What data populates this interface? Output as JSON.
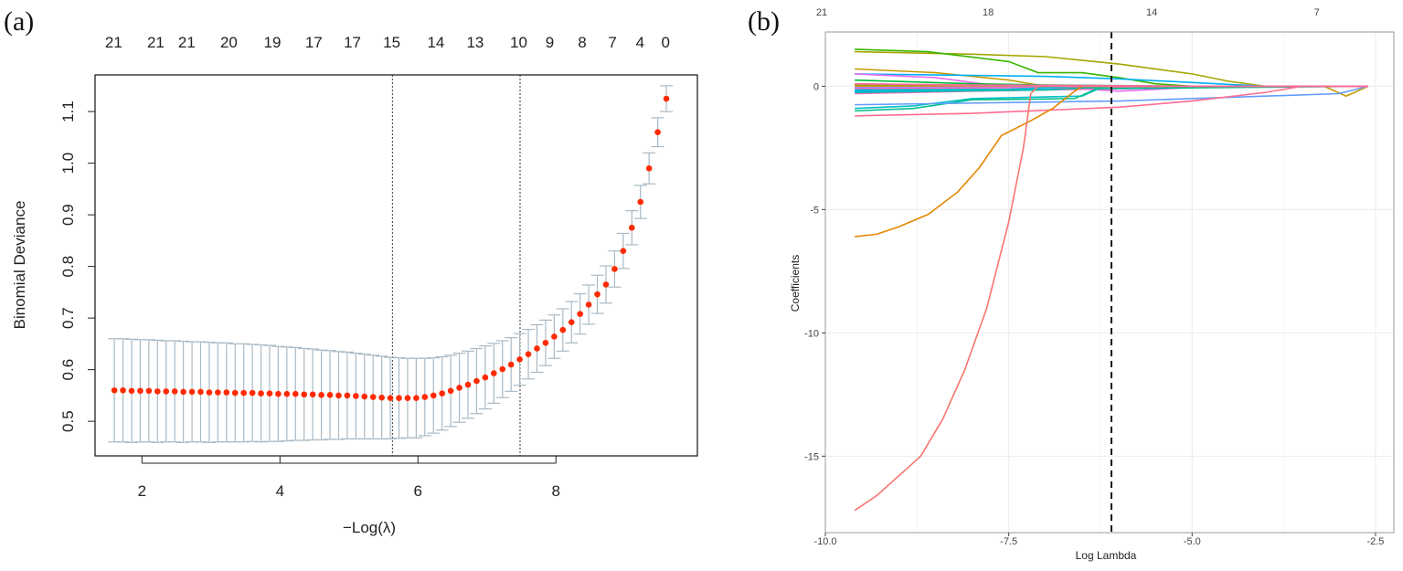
{
  "panels": {
    "a": "(a)",
    "b": "(b)"
  },
  "chart_data": [
    {
      "type": "scatter",
      "title": "",
      "xlabel": "−Log(λ)",
      "ylabel": "Binomial Deviance",
      "xlim": [
        1.32,
        10.05
      ],
      "ylim": [
        0.433,
        1.171
      ],
      "xticks": [
        2,
        4,
        6,
        8
      ],
      "xtick_labels": [
        "2",
        "4",
        "6",
        "8"
      ],
      "yticks": [
        0.5,
        0.6,
        0.7,
        0.8,
        0.9,
        1.0,
        1.1
      ],
      "ytick_labels": [
        "0.5",
        "0.6",
        "0.7",
        "0.8",
        "0.9",
        "1.0",
        "1.1"
      ],
      "top_axis": {
        "x": [
          1.59,
          2.2,
          2.65,
          3.26,
          3.89,
          4.49,
          5.05,
          5.62,
          6.26,
          6.83,
          7.46,
          7.91,
          8.38,
          8.82,
          9.22,
          9.59
        ],
        "labels": [
          "21",
          "21",
          "21",
          "20",
          "19",
          "17",
          "17",
          "15",
          "14",
          "13",
          "10",
          "9",
          "8",
          "7",
          "4",
          "0"
        ]
      },
      "vlines": [
        5.63,
        7.48
      ],
      "x_start": 1.6,
      "x_step": 0.125,
      "y": [
        0.56,
        0.56,
        0.559,
        0.559,
        0.559,
        0.558,
        0.558,
        0.558,
        0.557,
        0.557,
        0.557,
        0.556,
        0.556,
        0.556,
        0.555,
        0.555,
        0.555,
        0.554,
        0.554,
        0.553,
        0.553,
        0.553,
        0.552,
        0.552,
        0.551,
        0.551,
        0.55,
        0.55,
        0.549,
        0.548,
        0.547,
        0.546,
        0.545,
        0.545,
        0.545,
        0.545,
        0.547,
        0.55,
        0.554,
        0.559,
        0.565,
        0.571,
        0.578,
        0.585,
        0.593,
        0.601,
        0.61,
        0.62,
        0.63,
        0.641,
        0.652,
        0.664,
        0.677,
        0.692,
        0.708,
        0.726,
        0.746,
        0.765,
        0.795,
        0.83,
        0.875,
        0.925,
        0.99,
        1.06,
        1.125
      ],
      "se": [
        0.1,
        0.1,
        0.1,
        0.099,
        0.099,
        0.099,
        0.098,
        0.098,
        0.098,
        0.097,
        0.097,
        0.097,
        0.096,
        0.096,
        0.095,
        0.095,
        0.094,
        0.094,
        0.093,
        0.092,
        0.091,
        0.09,
        0.089,
        0.088,
        0.087,
        0.086,
        0.085,
        0.084,
        0.083,
        0.082,
        0.081,
        0.08,
        0.079,
        0.078,
        0.077,
        0.077,
        0.075,
        0.073,
        0.071,
        0.069,
        0.067,
        0.065,
        0.063,
        0.061,
        0.058,
        0.055,
        0.052,
        0.05,
        0.048,
        0.046,
        0.044,
        0.042,
        0.041,
        0.04,
        0.039,
        0.038,
        0.037,
        0.036,
        0.035,
        0.034,
        0.033,
        0.032,
        0.03,
        0.028,
        0.025
      ],
      "point_color": "#ff2a00",
      "errorbar_color": "#a9b9c4"
    },
    {
      "type": "line",
      "title": "",
      "xlabel": "Log Lambda",
      "ylabel": "Coefficients",
      "xlim": [
        -10.0,
        -2.25
      ],
      "ylim": [
        -18.1,
        2.2
      ],
      "grid": true,
      "xticks": [
        -10.0,
        -7.5,
        -5.0,
        -2.5
      ],
      "xtick_labels": [
        "-10.0",
        "-7.5",
        "-5.0",
        "-2.5"
      ],
      "yticks": [
        0,
        -5,
        -10,
        -15
      ],
      "ytick_labels": [
        "0",
        "-5",
        "-10",
        "-15"
      ],
      "top_axis": {
        "x": [
          -10.05,
          -7.78,
          -5.55,
          -3.3
        ],
        "labels": [
          "21",
          "18",
          "14",
          "7"
        ]
      },
      "vline": -6.1,
      "series": [
        {
          "color": "#A3A500",
          "points": [
            [
              -9.6,
              1.4
            ],
            [
              -8,
              1.3
            ],
            [
              -7,
              1.2
            ],
            [
              -6,
              0.9
            ],
            [
              -5,
              0.5
            ],
            [
              -4.5,
              0.2
            ],
            [
              -4,
              0
            ],
            [
              -2.6,
              0
            ]
          ]
        },
        {
          "color": "#39B600",
          "points": [
            [
              -9.6,
              1.5
            ],
            [
              -8.6,
              1.4
            ],
            [
              -7.5,
              1.0
            ],
            [
              -7.1,
              0.55
            ],
            [
              -6.5,
              0.55
            ],
            [
              -6,
              0.35
            ],
            [
              -5.5,
              0.1
            ],
            [
              -5,
              0
            ],
            [
              -2.6,
              0
            ]
          ]
        },
        {
          "color": "#C49A00",
          "points": [
            [
              -9.6,
              0.7
            ],
            [
              -8.5,
              0.55
            ],
            [
              -7.5,
              0.25
            ],
            [
              -7,
              0
            ],
            [
              -3.2,
              0
            ],
            [
              -2.9,
              -0.4
            ],
            [
              -2.6,
              0
            ]
          ]
        },
        {
          "color": "#00B0F6",
          "points": [
            [
              -9.6,
              0.5
            ],
            [
              -7,
              0.4
            ],
            [
              -6,
              0.3
            ],
            [
              -4,
              0
            ],
            [
              -2.6,
              0
            ]
          ]
        },
        {
          "color": "#E76BF3",
          "points": [
            [
              -9.6,
              0.5
            ],
            [
              -8.5,
              0.35
            ],
            [
              -7.6,
              0
            ],
            [
              -6.5,
              -0.1
            ],
            [
              -6,
              -0.2
            ],
            [
              -5,
              -0.05
            ],
            [
              -4,
              0
            ],
            [
              -2.6,
              0
            ]
          ]
        },
        {
          "color": "#00BA38",
          "points": [
            [
              -9.6,
              0.25
            ],
            [
              -8,
              0.1
            ],
            [
              -7,
              0.05
            ],
            [
              -5,
              0
            ],
            [
              -2.6,
              0
            ]
          ]
        },
        {
          "color": "#7CAE00",
          "points": [
            [
              -9.6,
              0.05
            ],
            [
              -7,
              0.03
            ],
            [
              -5.5,
              0
            ],
            [
              -2.6,
              0
            ]
          ]
        },
        {
          "color": "#D89000",
          "points": [
            [
              -9.6,
              0.0
            ],
            [
              -6,
              0
            ],
            [
              -2.6,
              0
            ]
          ]
        },
        {
          "color": "#9590FF",
          "points": [
            [
              -9.6,
              -0.05
            ],
            [
              -6,
              -0.03
            ],
            [
              -4.5,
              0
            ],
            [
              -2.6,
              0
            ]
          ]
        },
        {
          "color": "#FF62BC",
          "points": [
            [
              -9.6,
              -0.1
            ],
            [
              -7,
              -0.05
            ],
            [
              -5,
              0
            ],
            [
              -2.6,
              0
            ]
          ]
        },
        {
          "color": "#00A9FF",
          "points": [
            [
              -9.6,
              -0.2
            ],
            [
              -6,
              -0.1
            ],
            [
              -4,
              0
            ],
            [
              -2.6,
              0
            ]
          ]
        },
        {
          "color": "#00BCD8",
          "points": [
            [
              -9.6,
              -0.15
            ],
            [
              -7.5,
              -0.12
            ],
            [
              -6.5,
              0
            ],
            [
              -2.6,
              0
            ]
          ]
        },
        {
          "color": "#FF61C3",
          "points": [
            [
              -9.6,
              -0.3
            ],
            [
              -8,
              -0.2
            ],
            [
              -6,
              -0.1
            ],
            [
              -4.5,
              0
            ],
            [
              -2.6,
              0
            ]
          ]
        },
        {
          "color": "#00C1A3",
          "points": [
            [
              -9.6,
              -0.25
            ],
            [
              -7,
              -0.15
            ],
            [
              -6,
              0
            ],
            [
              -2.6,
              0
            ]
          ]
        },
        {
          "color": "#00BFC4",
          "points": [
            [
              -9.6,
              -0.9
            ],
            [
              -8.8,
              -0.8
            ],
            [
              -8,
              -0.5
            ],
            [
              -6.5,
              -0.4
            ],
            [
              -6.2,
              0
            ],
            [
              -2.6,
              0
            ]
          ]
        },
        {
          "color": "#00C08B",
          "points": [
            [
              -9.6,
              -1.0
            ],
            [
              -8.8,
              -0.9
            ],
            [
              -8,
              -0.55
            ],
            [
              -6.6,
              -0.5
            ],
            [
              -6.3,
              -0.1
            ],
            [
              -2.6,
              0
            ]
          ]
        },
        {
          "color": "#619CFF",
          "points": [
            [
              -9.6,
              -0.75
            ],
            [
              -6,
              -0.6
            ],
            [
              -4,
              -0.4
            ],
            [
              -3,
              -0.3
            ],
            [
              -2.6,
              0
            ]
          ]
        },
        {
          "color": "#FF6C91",
          "points": [
            [
              -9.6,
              -1.2
            ],
            [
              -8,
              -1.1
            ],
            [
              -6,
              -0.85
            ],
            [
              -5,
              -0.6
            ],
            [
              -4,
              -0.25
            ],
            [
              -3.5,
              0
            ],
            [
              -2.6,
              0
            ]
          ]
        },
        {
          "color": "#E58700",
          "points": [
            [
              -9.6,
              -6.1
            ],
            [
              -9.3,
              -6.0
            ],
            [
              -9,
              -5.7
            ],
            [
              -8.6,
              -5.2
            ],
            [
              -8.2,
              -4.3
            ],
            [
              -7.9,
              -3.3
            ],
            [
              -7.6,
              -2.0
            ],
            [
              -7.2,
              -1.4
            ],
            [
              -6.9,
              -0.9
            ],
            [
              -6.6,
              -0.2
            ],
            [
              -6.5,
              0
            ],
            [
              -2.6,
              0
            ]
          ]
        },
        {
          "color": "#F8766D",
          "points": [
            [
              -9.6,
              -17.2
            ],
            [
              -9.3,
              -16.6
            ],
            [
              -9,
              -15.8
            ],
            [
              -8.7,
              -15.0
            ],
            [
              -8.4,
              -13.5
            ],
            [
              -8.1,
              -11.5
            ],
            [
              -7.8,
              -9.0
            ],
            [
              -7.5,
              -5.5
            ],
            [
              -7.3,
              -2.5
            ],
            [
              -7.2,
              -0.3
            ],
            [
              -7.1,
              0
            ],
            [
              -2.6,
              0
            ]
          ]
        },
        {
          "color": "#FF67A4",
          "points": [
            [
              -9.6,
              0.1
            ],
            [
              -8,
              0.05
            ],
            [
              -6,
              0.02
            ],
            [
              -5,
              0
            ],
            [
              -2.6,
              0
            ]
          ]
        }
      ]
    }
  ]
}
